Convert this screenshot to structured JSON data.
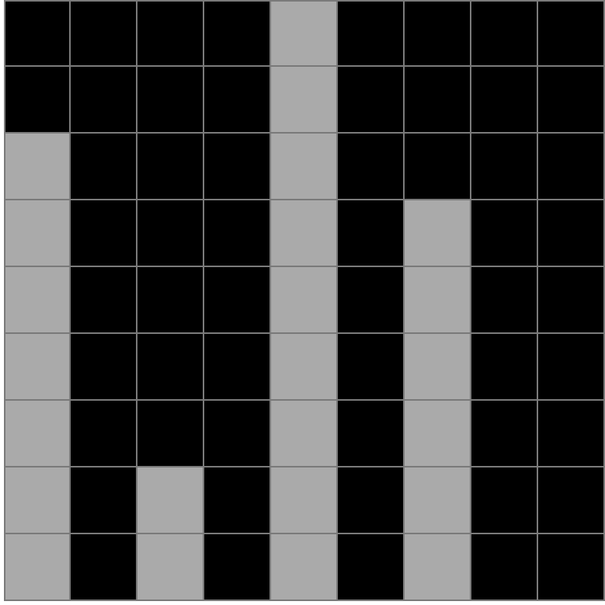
{
  "board": {
    "rows": 9,
    "cols": 9,
    "colors": {
      "filled": "#aaaaaa",
      "empty": "#000000",
      "gridline": "#7a7a7a"
    },
    "column_heights": [
      7,
      0,
      2,
      0,
      9,
      0,
      6,
      0,
      0
    ]
  }
}
